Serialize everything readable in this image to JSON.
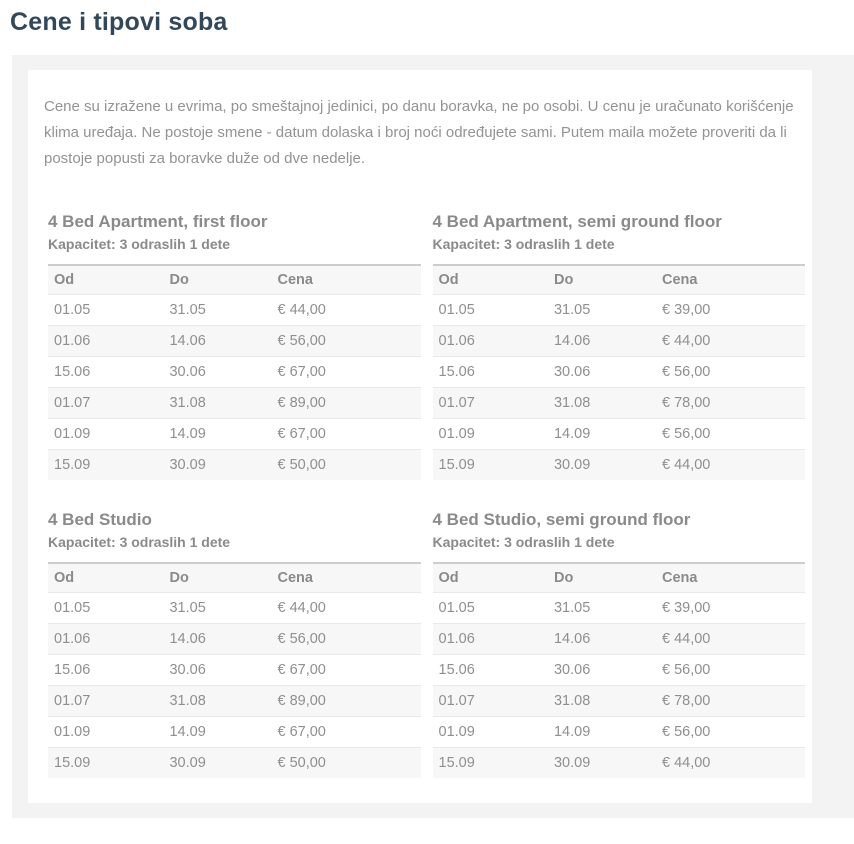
{
  "page": {
    "title": "Cene i tipovi soba"
  },
  "intro": "Cene su izražene u evrima, po smeštajnoj jedinici, po danu boravka, ne po osobi. U cenu je uračunato korišćenje klima uređaja. Ne postoje smene - datum dolaska i broj noći određujete sami. Putem maila možete proveriti da li postoje popusti za boravke duže od dve nedelje.",
  "table_headers": {
    "od": "Od",
    "do": "Do",
    "cena": "Cena"
  },
  "room_types": [
    {
      "title": "4 Bed Apartment, first floor",
      "capacity": "Kapacitet: 3 odraslih 1 dete",
      "rows": [
        {
          "od": "01.05",
          "do": "31.05",
          "cena": "€ 44,00"
        },
        {
          "od": "01.06",
          "do": "14.06",
          "cena": "€ 56,00"
        },
        {
          "od": "15.06",
          "do": "30.06",
          "cena": "€ 67,00"
        },
        {
          "od": "01.07",
          "do": "31.08",
          "cena": "€ 89,00"
        },
        {
          "od": "01.09",
          "do": "14.09",
          "cena": "€ 67,00"
        },
        {
          "od": "15.09",
          "do": "30.09",
          "cena": "€ 50,00"
        }
      ]
    },
    {
      "title": "4 Bed Apartment, semi ground floor",
      "capacity": "Kapacitet: 3 odraslih 1 dete",
      "rows": [
        {
          "od": "01.05",
          "do": "31.05",
          "cena": "€ 39,00"
        },
        {
          "od": "01.06",
          "do": "14.06",
          "cena": "€ 44,00"
        },
        {
          "od": "15.06",
          "do": "30.06",
          "cena": "€ 56,00"
        },
        {
          "od": "01.07",
          "do": "31.08",
          "cena": "€ 78,00"
        },
        {
          "od": "01.09",
          "do": "14.09",
          "cena": "€ 56,00"
        },
        {
          "od": "15.09",
          "do": "30.09",
          "cena": "€ 44,00"
        }
      ]
    },
    {
      "title": "4 Bed Studio",
      "capacity": "Kapacitet: 3 odraslih 1 dete",
      "rows": [
        {
          "od": "01.05",
          "do": "31.05",
          "cena": "€ 44,00"
        },
        {
          "od": "01.06",
          "do": "14.06",
          "cena": "€ 56,00"
        },
        {
          "od": "15.06",
          "do": "30.06",
          "cena": "€ 67,00"
        },
        {
          "od": "01.07",
          "do": "31.08",
          "cena": "€ 89,00"
        },
        {
          "od": "01.09",
          "do": "14.09",
          "cena": "€ 67,00"
        },
        {
          "od": "15.09",
          "do": "30.09",
          "cena": "€ 50,00"
        }
      ]
    },
    {
      "title": "4 Bed Studio, semi ground floor",
      "capacity": "Kapacitet: 3 odraslih 1 dete",
      "rows": [
        {
          "od": "01.05",
          "do": "31.05",
          "cena": "€ 39,00"
        },
        {
          "od": "01.06",
          "do": "14.06",
          "cena": "€ 44,00"
        },
        {
          "od": "15.06",
          "do": "30.06",
          "cena": "€ 56,00"
        },
        {
          "od": "01.07",
          "do": "31.08",
          "cena": "€ 78,00"
        },
        {
          "od": "01.09",
          "do": "14.09",
          "cena": "€ 56,00"
        },
        {
          "od": "15.09",
          "do": "30.09",
          "cena": "€ 44,00"
        }
      ]
    }
  ],
  "colors": {
    "title": "#33475b",
    "text_gray": "#8f8f8f",
    "panel_bg": "#f3f3f3",
    "stripe_bg": "#f7f7f7",
    "table_top_border": "#cdcdcd",
    "row_border": "#e9e9e9"
  }
}
